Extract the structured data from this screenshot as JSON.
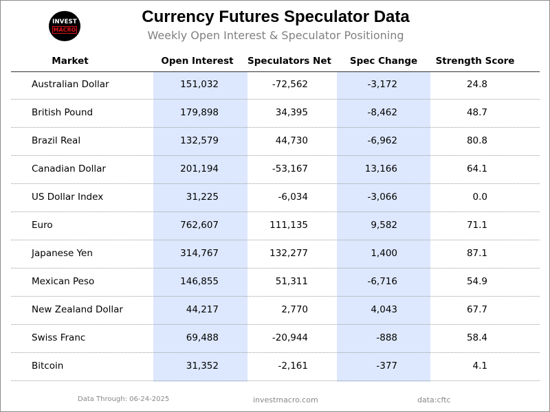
{
  "logo": {
    "line1": "INVEST",
    "line2": "MACRO"
  },
  "chart_data": {
    "type": "table",
    "title": "Currency Futures Speculator Data",
    "subtitle": "Weekly Open Interest & Speculator Positioning",
    "columns": [
      "Market",
      "Open Interest",
      "Speculators Net",
      "Spec Change",
      "Strength Score"
    ],
    "rows": [
      [
        "Australian Dollar",
        "151,032",
        "-72,562",
        "-3,172",
        "24.8"
      ],
      [
        "British Pound",
        "179,898",
        "34,395",
        "-8,462",
        "48.7"
      ],
      [
        "Brazil Real",
        "132,579",
        "44,730",
        "-6,962",
        "80.8"
      ],
      [
        "Canadian Dollar",
        "201,194",
        "-53,167",
        "13,166",
        "64.1"
      ],
      [
        "US Dollar Index",
        "31,225",
        "-6,034",
        "-3,066",
        "0.0"
      ],
      [
        "Euro",
        "762,607",
        "111,135",
        "9,582",
        "71.1"
      ],
      [
        "Japanese Yen",
        "314,767",
        "132,277",
        "1,400",
        "87.1"
      ],
      [
        "Mexican Peso",
        "146,855",
        "51,311",
        "-6,716",
        "54.9"
      ],
      [
        "New Zealand Dollar",
        "44,217",
        "2,770",
        "4,043",
        "67.7"
      ],
      [
        "Swiss Franc",
        "69,488",
        "-20,944",
        "-888",
        "58.4"
      ],
      [
        "Bitcoin",
        "31,352",
        "-2,161",
        "-377",
        "4.1"
      ]
    ],
    "highlight_color": "#dde8fe"
  },
  "footer": {
    "data_through": "Data Through: 06-24-2025",
    "site": "investmacro.com",
    "source": "data:cftc"
  }
}
